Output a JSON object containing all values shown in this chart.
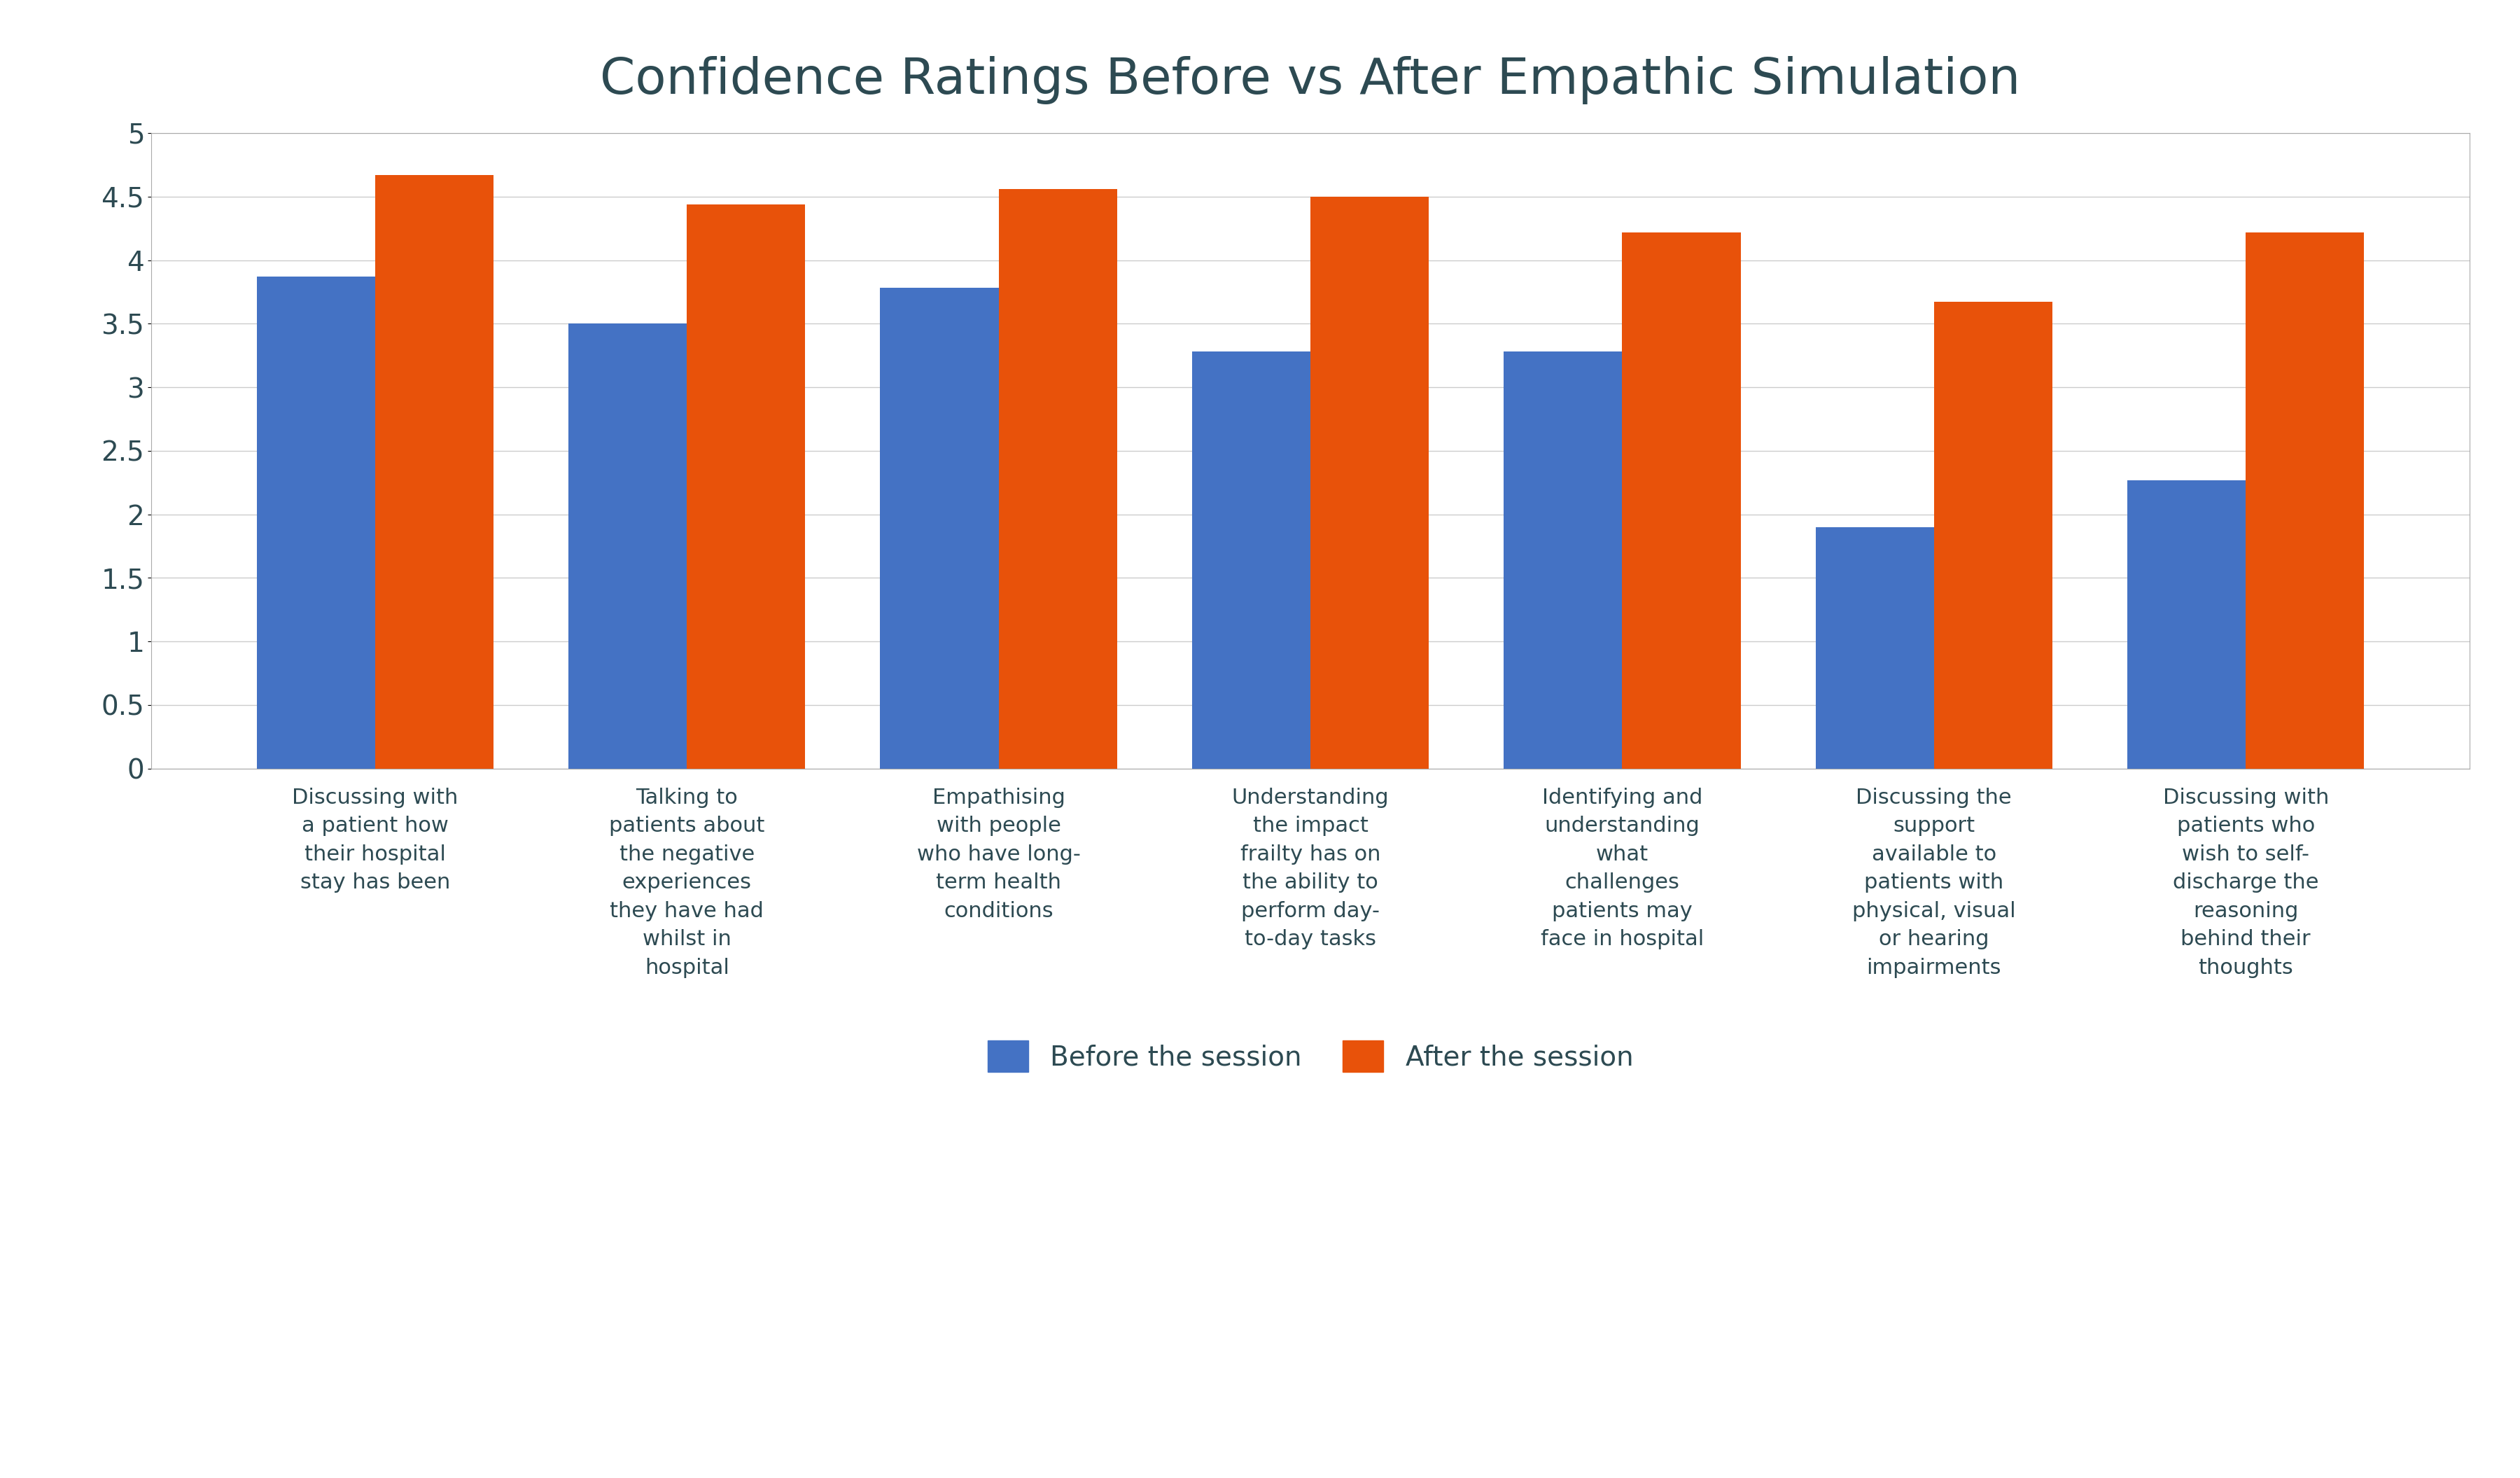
{
  "title": "Confidence Ratings Before vs After Empathic Simulation",
  "categories": [
    "Discussing with\na patient how\ntheir hospital\nstay has been",
    "Talking to\npatients about\nthe negative\nexperiences\nthey have had\nwhilst in\nhospital",
    "Empathising\nwith people\nwho have long-\nterm health\nconditions",
    "Understanding\nthe impact\nfrailty has on\nthe ability to\nperform day-\nto-day tasks",
    "Identifying and\nunderstanding\nwhat\nchallenges\npatients may\nface in hospital",
    "Discussing the\nsupport\navailable to\npatients with\nphysical, visual\nor hearing\nimpairments",
    "Discussing with\npatients who\nwish to self-\ndischarge the\nreasoning\nbehind their\nthoughts"
  ],
  "before_values": [
    3.87,
    3.5,
    3.78,
    3.28,
    3.28,
    1.9,
    2.27
  ],
  "after_values": [
    4.67,
    4.44,
    4.56,
    4.5,
    4.22,
    3.67,
    4.22
  ],
  "before_color": "#4472C4",
  "after_color": "#E8520A",
  "before_label": "Before the session",
  "after_label": "After the session",
  "ylim": [
    0,
    5
  ],
  "yticks": [
    0,
    0.5,
    1,
    1.5,
    2,
    2.5,
    3,
    3.5,
    4,
    4.5,
    5
  ],
  "ytick_labels": [
    "0",
    "0.5",
    "1",
    "1.5",
    "2",
    "2.5",
    "3",
    "3.5",
    "4",
    "4.5",
    "5"
  ],
  "title_fontsize": 52,
  "tick_fontsize": 28,
  "legend_fontsize": 28,
  "cat_fontsize": 22,
  "background_color": "#FFFFFF",
  "bar_width": 0.38,
  "text_color": "#2D4A52",
  "border_color": "#AAAAAA",
  "grid_color": "#CCCCCC"
}
